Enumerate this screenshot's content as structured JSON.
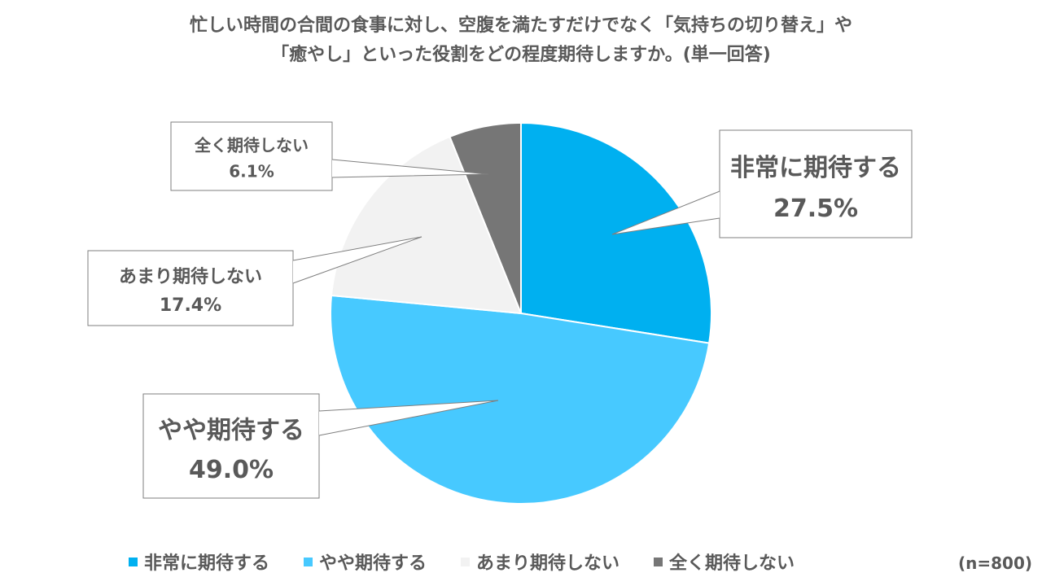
{
  "chart_data": {
    "type": "pie",
    "title_lines": [
      "忙しい時間の合間の食事に対し、空腹を満たすだけでなく「気持ちの切り替え」や",
      "「癒やし」といった役割をどの程度期待しますか。(単一回答)"
    ],
    "categories": [
      "非常に期待する",
      "やや期待する",
      "あまり期待しない",
      "全く期待しない"
    ],
    "values": [
      27.5,
      49.0,
      17.4,
      6.1
    ],
    "value_labels": [
      "27.5%",
      "49.0%",
      "17.4%",
      "6.1%"
    ],
    "colors": [
      "#00B0F0",
      "#47C9FF",
      "#F2F2F2",
      "#767676"
    ],
    "legend_position": "bottom",
    "note": "(n=800)"
  }
}
